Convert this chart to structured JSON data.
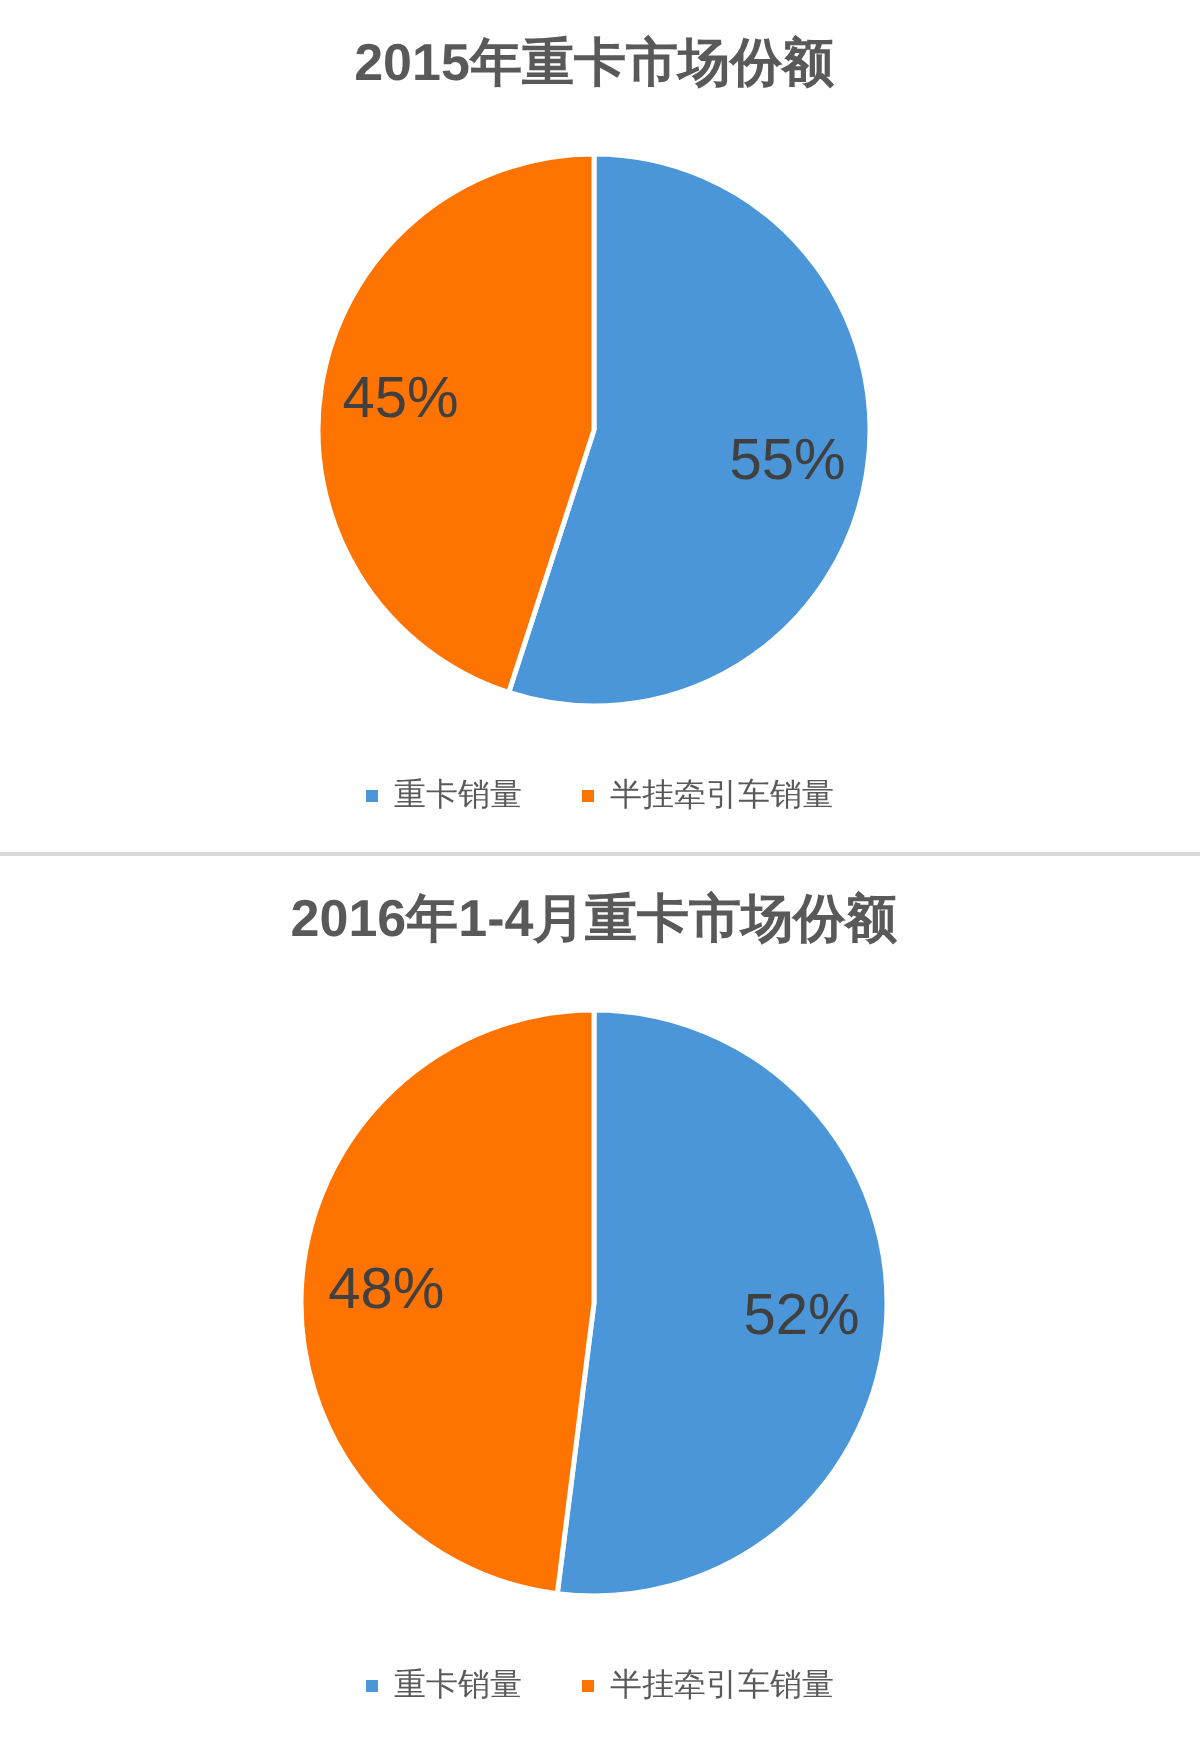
{
  "chart_data": [
    {
      "type": "pie",
      "title": "2015年重卡市场份额",
      "categories": [
        "重卡销量",
        "半挂牵引车销量"
      ],
      "values": [
        55,
        45
      ],
      "colors": [
        "#4a96d8",
        "#ff7300"
      ],
      "value_labels": [
        "55%",
        "45%"
      ],
      "legend": "bottom"
    },
    {
      "type": "pie",
      "title": "2016年1-4月重卡市场份额",
      "categories": [
        "重卡销量",
        "半挂牵引车销量"
      ],
      "values": [
        52,
        48
      ],
      "colors": [
        "#4a96d8",
        "#ff7300"
      ],
      "value_labels": [
        "52%",
        "48%"
      ],
      "legend": "bottom"
    }
  ]
}
